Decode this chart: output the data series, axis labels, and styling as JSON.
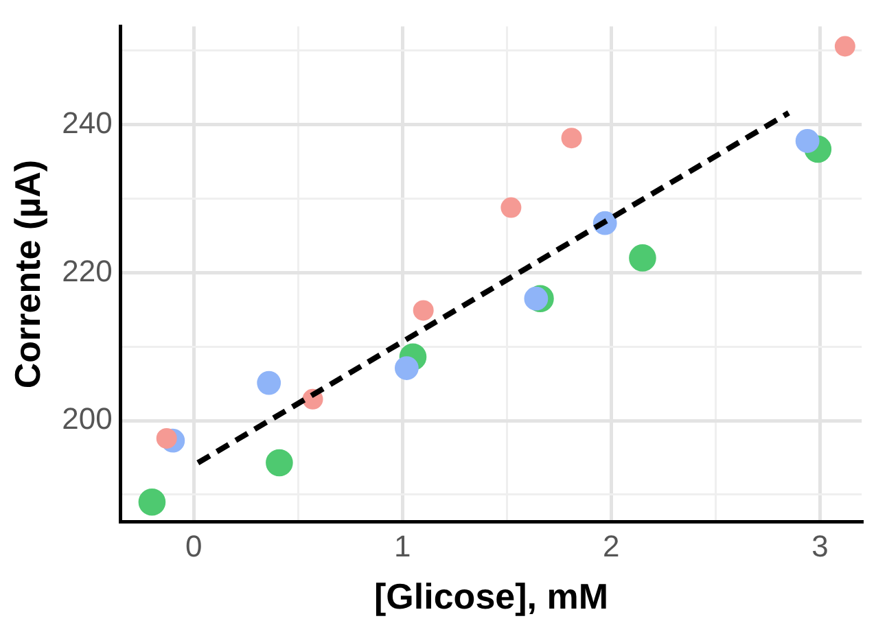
{
  "chart_data": {
    "type": "scatter",
    "xlabel": "[Glicose], mM",
    "ylabel": "Corrente (µA)",
    "xlim": [
      -0.35,
      3.2
    ],
    "xticks": [
      0,
      {
        "value": 0.5,
        "label": null
      },
      1,
      {
        "value": 1.5,
        "label": null
      },
      2,
      {
        "value": 2.5,
        "label": null
      },
      3
    ],
    "ylim": [
      186.3,
      253.3
    ],
    "yticks": [
      {
        "value": 190,
        "label": null
      },
      200,
      {
        "value": 210,
        "label": null
      },
      220,
      {
        "value": 230,
        "label": null
      },
      240,
      {
        "value": 250,
        "label": null
      }
    ],
    "grid": true,
    "legend": false,
    "marker": "circle",
    "series": [
      {
        "color": "#f59a94",
        "x": [
          -0.13,
          0.57,
          1.1,
          1.52,
          1.81,
          3.12
        ],
        "values": [
          197.6,
          202.9,
          214.9,
          228.8,
          238.2,
          250.6
        ]
      },
      {
        "color": "#8fb4f8",
        "x": [
          -0.1,
          0.36,
          1.02,
          1.64,
          1.97,
          2.94
        ],
        "values": [
          197.3,
          205.1,
          207.1,
          216.5,
          226.7,
          237.8
        ]
      },
      {
        "color": "#4ec970",
        "x": [
          -0.2,
          0.41,
          1.05,
          1.66,
          2.15,
          2.99
        ],
        "values": [
          189,
          194.3,
          208.6,
          216.5,
          222,
          236.7
        ]
      },
      {
        "type": "line",
        "color": "#000000",
        "line_style": "dashed",
        "marker": "none",
        "x": [
          0.02,
          2.85
        ],
        "values": [
          194.3,
          241.6
        ]
      }
    ]
  }
}
